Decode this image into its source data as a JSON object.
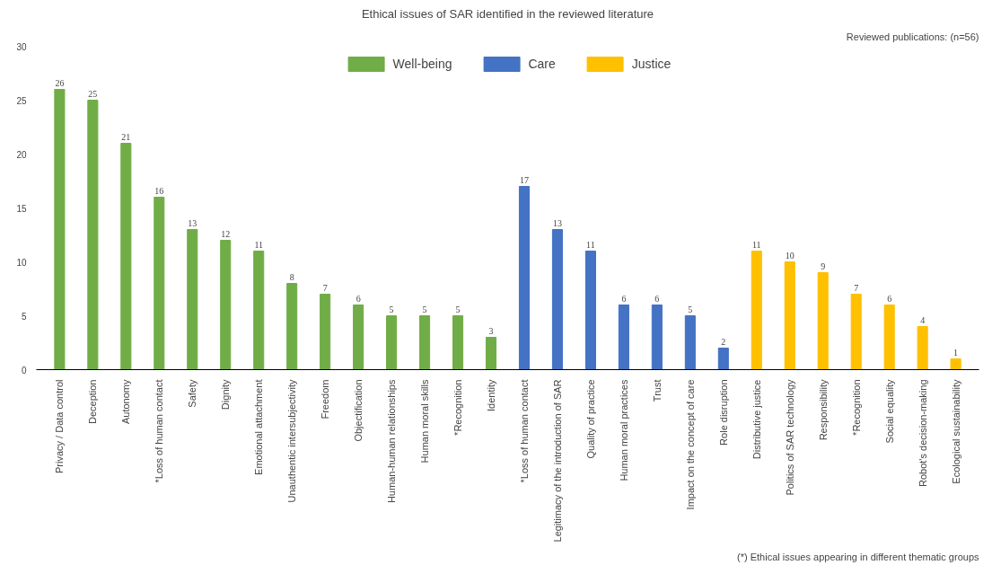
{
  "chart_data": {
    "type": "bar",
    "title": "Ethical issues of SAR identified in the reviewed literature",
    "categories": [
      "Privacy / Data control",
      "Deception",
      "Autonomy",
      "*Loss of human contact",
      "Safety",
      "Dignity",
      "Emotional attachment",
      "Unauthentic intersubjectivity",
      "Freedom",
      "Objectification",
      "Human-human relationships",
      "Human moral skills",
      "*Recognition",
      "Identity",
      "*Loss of human contact",
      "Legitimacy of the introduction of SAR",
      "Quality of practice",
      "Human moral practices",
      "Trust",
      "Impact on the concept of care",
      "Role disruption",
      "Distributive justice",
      "Politics of SAR technology",
      "Responsibility",
      "*Recognition",
      "Social equality",
      "Robot's decision-making",
      "Ecological sustainability"
    ],
    "series": [
      {
        "name": "Well-being",
        "color": "#70ad47",
        "values": [
          26,
          25,
          21,
          16,
          13,
          12,
          11,
          8,
          7,
          6,
          5,
          5,
          5,
          3,
          null,
          null,
          null,
          null,
          null,
          null,
          null,
          null,
          null,
          null,
          null,
          null,
          null,
          null
        ]
      },
      {
        "name": "Care",
        "color": "#4472c4",
        "values": [
          null,
          null,
          null,
          null,
          null,
          null,
          null,
          null,
          null,
          null,
          null,
          null,
          null,
          null,
          17,
          13,
          11,
          6,
          6,
          5,
          2,
          null,
          null,
          null,
          null,
          null,
          null,
          null
        ]
      },
      {
        "name": "Justice",
        "color": "#ffc000",
        "values": [
          null,
          null,
          null,
          null,
          null,
          null,
          null,
          null,
          null,
          null,
          null,
          null,
          null,
          null,
          null,
          null,
          null,
          null,
          null,
          null,
          null,
          11,
          10,
          9,
          7,
          6,
          4,
          1
        ]
      }
    ],
    "ylim": [
      0,
      30
    ],
    "yticks": [
      0,
      5,
      10,
      15,
      20,
      25,
      30
    ],
    "data_labels": true,
    "legend": "top",
    "grid": false,
    "annotations": [
      "Reviewed publications: (n=56)",
      "(*) Ethical issues appearing in different thematic groups"
    ]
  }
}
